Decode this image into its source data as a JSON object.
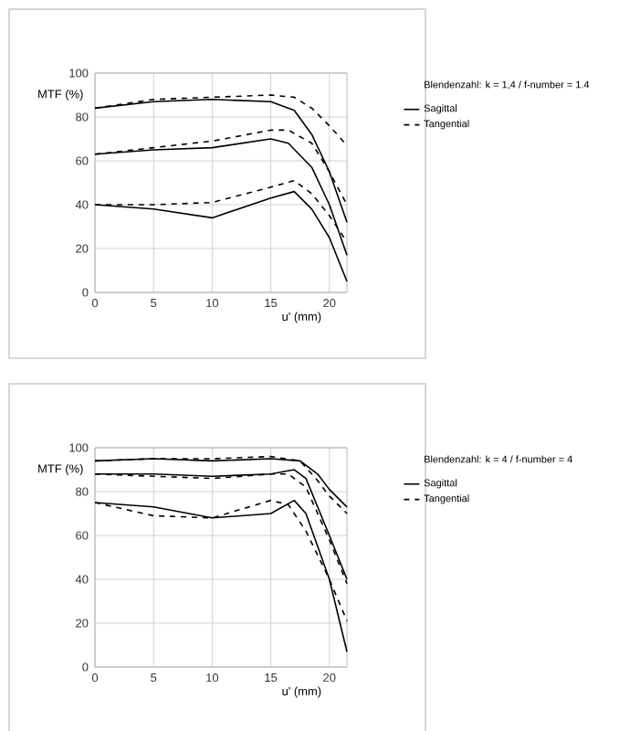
{
  "chart_data": [
    {
      "type": "line",
      "legend_title": "Blendenzahl: k = 1,4 / f-number = 1.4",
      "xlabel": "u' (mm)",
      "ylabel": "MTF (%)",
      "xlim": [
        0,
        21.5
      ],
      "ylim": [
        0,
        100
      ],
      "xticks": [
        0,
        5,
        10,
        15,
        20
      ],
      "yticks": [
        0,
        20,
        40,
        60,
        80,
        100
      ],
      "grid": true,
      "legend": "right",
      "series": [
        {
          "name": "Sagittal",
          "color": "#000000",
          "line_style": "solid",
          "x": [
            0,
            5,
            10,
            15,
            17,
            18.5,
            20,
            21.5
          ],
          "values": [
            84,
            87,
            88,
            87,
            83,
            72,
            55,
            32
          ]
        },
        {
          "name": "Tangential",
          "color": "#000000",
          "line_style": "dashed",
          "x": [
            0,
            5,
            10,
            15,
            17,
            18.5,
            20,
            21.5
          ],
          "values": [
            84,
            88,
            89,
            90,
            89,
            84,
            76,
            67
          ]
        },
        {
          "color": "#000000",
          "line_style": "solid",
          "x": [
            0,
            5,
            10,
            15,
            16.5,
            18.5,
            20,
            21.5
          ],
          "values": [
            63,
            65,
            66,
            70,
            68,
            57,
            40,
            17
          ]
        },
        {
          "color": "#000000",
          "line_style": "dashed",
          "x": [
            0,
            5,
            10,
            15,
            16.5,
            18.5,
            20,
            21.5
          ],
          "values": [
            63,
            66,
            69,
            74,
            74,
            68,
            55,
            40
          ]
        },
        {
          "color": "#000000",
          "line_style": "solid",
          "x": [
            0,
            5,
            10,
            15,
            17,
            18.5,
            20,
            21.5
          ],
          "values": [
            40,
            38,
            34,
            43,
            46,
            38,
            25,
            5
          ]
        },
        {
          "color": "#000000",
          "line_style": "dashed",
          "x": [
            0,
            5,
            10,
            15,
            17,
            18.5,
            20,
            21.5
          ],
          "values": [
            40,
            40,
            41,
            48,
            51,
            45,
            35,
            23
          ]
        }
      ]
    },
    {
      "type": "line",
      "legend_title": "Blendenzahl: k = 4 / f-number = 4",
      "xlabel": "u' (mm)",
      "ylabel": "MTF (%)",
      "xlim": [
        0,
        21.5
      ],
      "ylim": [
        0,
        100
      ],
      "xticks": [
        0,
        5,
        10,
        15,
        20
      ],
      "yticks": [
        0,
        20,
        40,
        60,
        80,
        100
      ],
      "grid": true,
      "legend": "right",
      "series": [
        {
          "name": "Sagittal",
          "color": "#000000",
          "line_style": "solid",
          "x": [
            0,
            5,
            10,
            15,
            17.5,
            19,
            20,
            21.5
          ],
          "values": [
            94,
            95,
            94,
            95,
            94,
            88,
            81,
            73
          ]
        },
        {
          "name": "Tangential",
          "color": "#000000",
          "line_style": "dashed",
          "x": [
            0,
            5,
            10,
            15,
            17.5,
            19,
            20,
            21.5
          ],
          "values": [
            94,
            95,
            95,
            96,
            94,
            85,
            78,
            70
          ]
        },
        {
          "color": "#000000",
          "line_style": "solid",
          "x": [
            0,
            5,
            10,
            15,
            17,
            18,
            20,
            21.5
          ],
          "values": [
            88,
            88,
            87,
            88,
            90,
            86,
            60,
            40
          ]
        },
        {
          "color": "#000000",
          "line_style": "dashed",
          "x": [
            0,
            5,
            10,
            15,
            16.5,
            18,
            20,
            21.5
          ],
          "values": [
            88,
            87,
            86,
            88,
            88,
            82,
            58,
            38
          ]
        },
        {
          "color": "#000000",
          "line_style": "solid",
          "x": [
            0,
            5,
            10,
            15,
            17,
            18,
            20,
            21.5
          ],
          "values": [
            75,
            73,
            68,
            70,
            76,
            70,
            40,
            7
          ]
        },
        {
          "color": "#000000",
          "line_style": "dashed",
          "x": [
            0,
            5,
            10,
            15,
            16.5,
            18,
            20,
            21.5
          ],
          "values": [
            75,
            69,
            68,
            76,
            74,
            62,
            40,
            21
          ]
        }
      ]
    }
  ]
}
